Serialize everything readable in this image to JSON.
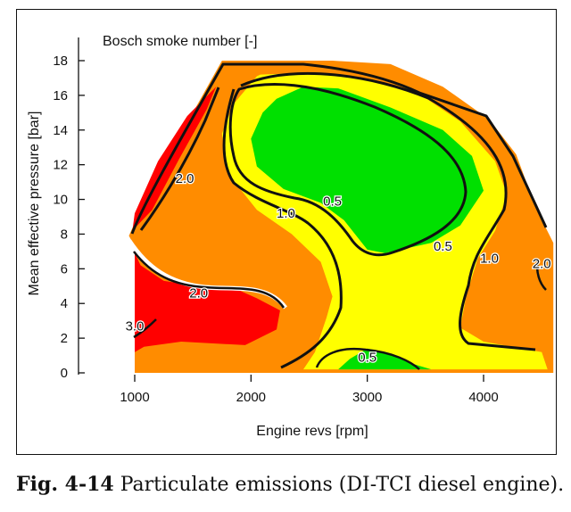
{
  "caption": {
    "label": "Fig. 4-14",
    "text": "Particulate emissions (DI-TCI diesel engine)."
  },
  "chart_data": {
    "type": "contour",
    "title": "Bosch smoke number [-]",
    "xlabel": "Engine revs [rpm]",
    "ylabel": "Mean effective pressure [bar]",
    "xlim": [
      500,
      4700
    ],
    "ylim": [
      -0.5,
      19.5
    ],
    "x_ticks": [
      1000,
      2000,
      3000,
      4000
    ],
    "y_ticks": [
      0,
      2,
      4,
      6,
      8,
      10,
      12,
      14,
      16,
      18
    ],
    "grid": false,
    "colors": {
      "orange": "#FF8C00",
      "yellow": "#FFFF00",
      "green": "#00E000",
      "red": "#FF0000"
    },
    "regions": [
      {
        "level": "1.0-2.0",
        "color": "orange",
        "outline": [
          [
            1000,
            0
          ],
          [
            1000,
            7.3
          ],
          [
            950,
            7.9
          ],
          [
            1050,
            9.4
          ],
          [
            1250,
            12
          ],
          [
            1500,
            15
          ],
          [
            1750,
            18
          ],
          [
            2700,
            18
          ],
          [
            3200,
            17.8
          ],
          [
            3650,
            16.5
          ],
          [
            4050,
            14.6
          ],
          [
            4280,
            12.6
          ],
          [
            4450,
            9.5
          ],
          [
            4600,
            7.5
          ],
          [
            4600,
            0
          ]
        ]
      },
      {
        "level": "2.0-3.0",
        "color": "red",
        "outline": [
          [
            980,
            7.2
          ],
          [
            1050,
            6.2
          ],
          [
            1250,
            5.3
          ],
          [
            1550,
            5.0
          ],
          [
            1850,
            4.9
          ],
          [
            2050,
            4.3
          ],
          [
            2250,
            3.6
          ],
          [
            2220,
            2.5
          ],
          [
            1950,
            1.6
          ],
          [
            1400,
            1.8
          ],
          [
            1080,
            1.5
          ],
          [
            1000,
            1.2
          ],
          [
            1000,
            6.9
          ]
        ]
      },
      {
        "level": "2.0-3.0",
        "color": "red",
        "outline": [
          [
            980,
            8.2
          ],
          [
            1150,
            9.4
          ],
          [
            1380,
            12.3
          ],
          [
            1620,
            15.2
          ],
          [
            1700,
            16.5
          ],
          [
            1450,
            14.8
          ],
          [
            1200,
            12.2
          ],
          [
            1000,
            9.2
          ]
        ]
      },
      {
        "level": "0.5-1.0",
        "color": "yellow",
        "outline": [
          [
            2080,
            17.2
          ],
          [
            2500,
            17.3
          ],
          [
            2950,
            17.0
          ],
          [
            3400,
            16.3
          ],
          [
            3800,
            14.5
          ],
          [
            4100,
            12.2
          ],
          [
            4200,
            10.3
          ],
          [
            4100,
            8.2
          ],
          [
            3950,
            6.6
          ],
          [
            3850,
            4.4
          ],
          [
            3800,
            2.6
          ],
          [
            4000,
            1.8
          ],
          [
            4500,
            1.2
          ],
          [
            4550,
            0.2
          ],
          [
            2450,
            0.2
          ],
          [
            2550,
            1.2
          ],
          [
            2650,
            3.2
          ],
          [
            2700,
            4.4
          ],
          [
            2600,
            6.4
          ],
          [
            2350,
            8.0
          ],
          [
            2050,
            9.4
          ],
          [
            1800,
            11.5
          ],
          [
            1750,
            13.8
          ],
          [
            1850,
            15.5
          ],
          [
            2050,
            17.1
          ]
        ]
      },
      {
        "level": "<0.5",
        "color": "green",
        "outline": [
          [
            2220,
            15.8
          ],
          [
            2450,
            16.5
          ],
          [
            2750,
            16.4
          ],
          [
            3200,
            15.3
          ],
          [
            3650,
            14.0
          ],
          [
            3900,
            12.5
          ],
          [
            4000,
            10.5
          ],
          [
            3800,
            8.5
          ],
          [
            3550,
            7.5
          ],
          [
            3150,
            6.9
          ],
          [
            3000,
            7.1
          ],
          [
            2800,
            8.8
          ],
          [
            2600,
            9.8
          ],
          [
            2280,
            10.6
          ],
          [
            2050,
            11.9
          ],
          [
            2000,
            13.5
          ],
          [
            2100,
            15.0
          ]
        ]
      },
      {
        "level": "<0.5",
        "color": "green",
        "outline": [
          [
            2750,
            0.2
          ],
          [
            2850,
            0.8
          ],
          [
            3000,
            1.4
          ],
          [
            3200,
            1.1
          ],
          [
            3400,
            0.5
          ],
          [
            3550,
            0.2
          ]
        ]
      }
    ],
    "contour_labels": [
      {
        "text": "2.0",
        "x": 1430,
        "y": 11.2
      },
      {
        "text": "2.0",
        "x": 1550,
        "y": 4.6
      },
      {
        "text": "3.0",
        "x": 1000,
        "y": 2.7
      },
      {
        "text": "1.0",
        "x": 2300,
        "y": 9.2
      },
      {
        "text": "0.5",
        "x": 2700,
        "y": 9.9
      },
      {
        "text": "0.5",
        "x": 3650,
        "y": 7.3
      },
      {
        "text": "1.0",
        "x": 4050,
        "y": 6.6
      },
      {
        "text": "2.0",
        "x": 4500,
        "y": 6.3
      },
      {
        "text": "0.5",
        "x": 3000,
        "y": 0.9
      }
    ]
  }
}
